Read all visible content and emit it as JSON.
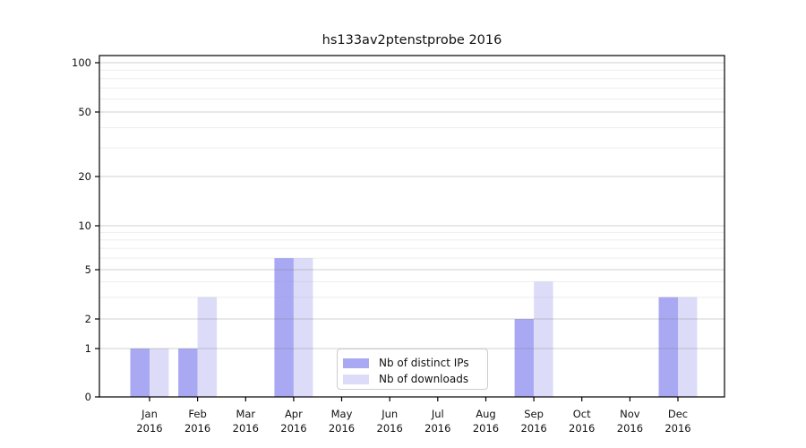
{
  "page": {
    "background": "#ffffff"
  },
  "chart_data": {
    "type": "bar",
    "title": "hs133av2ptenstprobe 2016",
    "categories": [
      "Jan",
      "Feb",
      "Mar",
      "Apr",
      "May",
      "Jun",
      "Jul",
      "Aug",
      "Sep",
      "Oct",
      "Nov",
      "Dec"
    ],
    "x_tick_second_line": "2016",
    "series": [
      {
        "name": "Nb of distinct IPs",
        "color": "#a9a9f3",
        "values": [
          1,
          1,
          0,
          6,
          0,
          0,
          0,
          0,
          2,
          0,
          0,
          3
        ]
      },
      {
        "name": "Nb of downloads",
        "color": "#dcdcf8",
        "values": [
          1,
          3,
          0,
          6,
          0,
          0,
          0,
          0,
          4,
          0,
          0,
          3
        ]
      }
    ],
    "xlabel": "",
    "ylabel": "",
    "y_axis": {
      "scale": "symlog (linear 0-1, logarithmic above 1)",
      "major_ticks": [
        0,
        1,
        2,
        5,
        10,
        20,
        50,
        100
      ],
      "minor_ticks": [
        3,
        4,
        6,
        7,
        8,
        9,
        30,
        40,
        60,
        70,
        80,
        90
      ],
      "ylim": [
        0,
        115
      ]
    },
    "grid": true,
    "legend": {
      "position": "lower center",
      "entries": [
        "Nb of distinct IPs",
        "Nb of downloads"
      ]
    }
  },
  "colors": {
    "grid_major": "#d2d2d2",
    "grid_minor": "#ededed",
    "axis": "#000000",
    "text": "#111111",
    "legend_border": "#cccccc"
  }
}
